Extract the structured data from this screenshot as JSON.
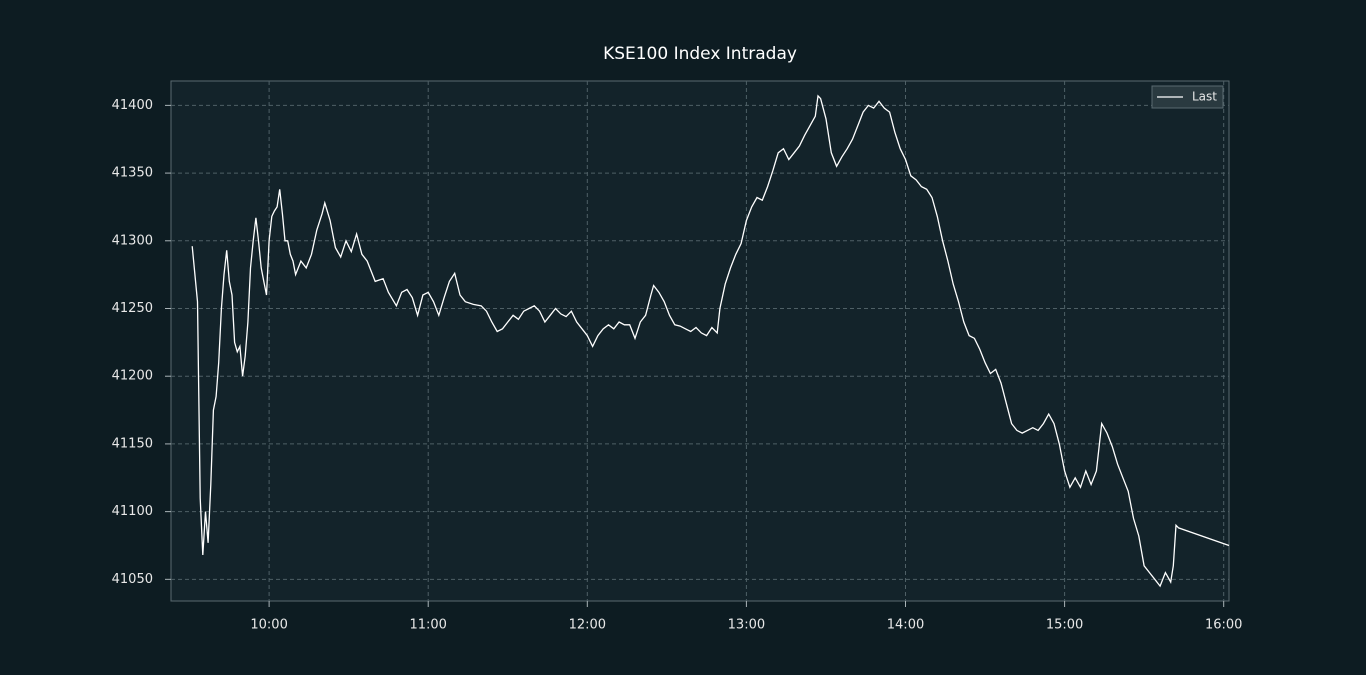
{
  "chart_data": {
    "type": "line",
    "title": "KSE100 Index Intraday",
    "x": [
      "09:31",
      "09:33",
      "09:34",
      "09:35",
      "09:36",
      "09:37",
      "09:38",
      "09:39",
      "09:40",
      "09:41",
      "09:42",
      "09:43",
      "09:44",
      "09:45",
      "09:46",
      "09:47",
      "09:48",
      "09:49",
      "09:50",
      "09:51",
      "09:52",
      "09:53",
      "09:54",
      "09:55",
      "09:56",
      "09:57",
      "09:58",
      "09:59",
      "10:00",
      "10:01",
      "10:02",
      "10:03",
      "10:04",
      "10:05",
      "10:06",
      "10:07",
      "10:08",
      "10:09",
      "10:10",
      "10:12",
      "10:14",
      "10:16",
      "10:18",
      "10:20",
      "10:21",
      "10:23",
      "10:25",
      "10:27",
      "10:29",
      "10:31",
      "10:33",
      "10:35",
      "10:37",
      "10:40",
      "10:43",
      "10:45",
      "10:48",
      "10:50",
      "10:52",
      "10:54",
      "10:56",
      "10:58",
      "11:00",
      "11:02",
      "11:04",
      "11:06",
      "11:08",
      "11:10",
      "11:12",
      "11:14",
      "11:17",
      "11:20",
      "11:22",
      "11:24",
      "11:26",
      "11:28",
      "11:30",
      "11:32",
      "11:34",
      "11:36",
      "11:38",
      "11:40",
      "11:42",
      "11:44",
      "11:46",
      "11:48",
      "11:50",
      "11:52",
      "11:54",
      "11:56",
      "11:58",
      "12:00",
      "12:02",
      "12:04",
      "12:06",
      "12:08",
      "12:10",
      "12:12",
      "12:14",
      "12:16",
      "12:18",
      "12:20",
      "12:22",
      "12:24",
      "12:25",
      "12:27",
      "12:29",
      "12:31",
      "12:33",
      "12:35",
      "12:37",
      "12:39",
      "12:41",
      "12:43",
      "12:45",
      "12:47",
      "12:49",
      "12:50",
      "12:52",
      "12:54",
      "12:56",
      "12:58",
      "13:00",
      "13:02",
      "13:04",
      "13:06",
      "13:08",
      "13:10",
      "13:12",
      "13:14",
      "13:16",
      "13:18",
      "13:20",
      "13:22",
      "13:24",
      "13:26",
      "13:27",
      "13:28",
      "13:30",
      "13:32",
      "13:34",
      "13:36",
      "13:38",
      "13:40",
      "13:42",
      "13:44",
      "13:46",
      "13:48",
      "13:50",
      "13:52",
      "13:54",
      "13:56",
      "13:58",
      "14:00",
      "14:02",
      "14:04",
      "14:06",
      "14:08",
      "14:10",
      "14:12",
      "14:14",
      "14:16",
      "14:18",
      "14:20",
      "14:22",
      "14:24",
      "14:26",
      "14:28",
      "14:30",
      "14:32",
      "14:34",
      "14:36",
      "14:38",
      "14:40",
      "14:42",
      "14:44",
      "14:46",
      "14:48",
      "14:50",
      "14:52",
      "14:54",
      "14:56",
      "14:58",
      "15:00",
      "15:02",
      "15:04",
      "15:06",
      "15:08",
      "15:10",
      "15:12",
      "15:14",
      "15:16",
      "15:18",
      "15:20",
      "15:22",
      "15:24",
      "15:26",
      "15:28",
      "15:30",
      "15:32",
      "15:34",
      "15:36",
      "15:38",
      "15:40",
      "15:41",
      "15:42",
      "15:43",
      "16:02"
    ],
    "series": [
      {
        "name": "Last",
        "color": "#ffffff",
        "values": [
          41296,
          41255,
          41110,
          41068,
          41100,
          41077,
          41120,
          41175,
          41185,
          41210,
          41250,
          41275,
          41293,
          41270,
          41260,
          41225,
          41218,
          41222,
          41200,
          41215,
          41240,
          41280,
          41300,
          41317,
          41300,
          41280,
          41270,
          41260,
          41300,
          41318,
          41322,
          41325,
          41338,
          41320,
          41300,
          41300,
          41290,
          41285,
          41275,
          41285,
          41280,
          41290,
          41308,
          41320,
          41328,
          41315,
          41295,
          41288,
          41300,
          41292,
          41305,
          41290,
          41285,
          41270,
          41272,
          41262,
          41252,
          41262,
          41264,
          41258,
          41245,
          41260,
          41262,
          41255,
          41245,
          41258,
          41270,
          41276,
          41260,
          41255,
          41253,
          41252,
          41248,
          41240,
          41233,
          41235,
          41240,
          41245,
          41242,
          41248,
          41250,
          41252,
          41248,
          41240,
          41245,
          41250,
          41246,
          41244,
          41248,
          41240,
          41235,
          41230,
          41222,
          41230,
          41235,
          41238,
          41235,
          41240,
          41238,
          41238,
          41228,
          41240,
          41245,
          41260,
          41267,
          41262,
          41255,
          41245,
          41238,
          41237,
          41235,
          41233,
          41236,
          41232,
          41230,
          41236,
          41232,
          41250,
          41268,
          41280,
          41290,
          41298,
          41315,
          41325,
          41332,
          41330,
          41340,
          41352,
          41365,
          41368,
          41360,
          41365,
          41370,
          41378,
          41385,
          41392,
          41407,
          41405,
          41390,
          41365,
          41355,
          41362,
          41368,
          41375,
          41385,
          41395,
          41400,
          41398,
          41403,
          41398,
          41395,
          41380,
          41368,
          41360,
          41348,
          41345,
          41340,
          41338,
          41332,
          41318,
          41300,
          41285,
          41268,
          41255,
          41240,
          41230,
          41228,
          41220,
          41210,
          41202,
          41205,
          41195,
          41180,
          41165,
          41160,
          41158,
          41160,
          41162,
          41160,
          41165,
          41172,
          41165,
          41150,
          41130,
          41118,
          41125,
          41118,
          41130,
          41120,
          41130,
          41165,
          41158,
          41148,
          41135,
          41125,
          41115,
          41095,
          41082,
          41060,
          41055,
          41050,
          41045,
          41055,
          41048,
          41060,
          41090,
          41088,
          41075
        ]
      }
    ],
    "xlim": [
      "09:23",
      "16:02"
    ],
    "xticks": [
      "10:00",
      "11:00",
      "12:00",
      "13:00",
      "14:00",
      "15:00",
      "16:00"
    ],
    "ylim": [
      41034,
      41418
    ],
    "yticks": [
      41050,
      41100,
      41150,
      41200,
      41250,
      41300,
      41350,
      41400
    ],
    "grid": true,
    "legend": "upper right"
  }
}
